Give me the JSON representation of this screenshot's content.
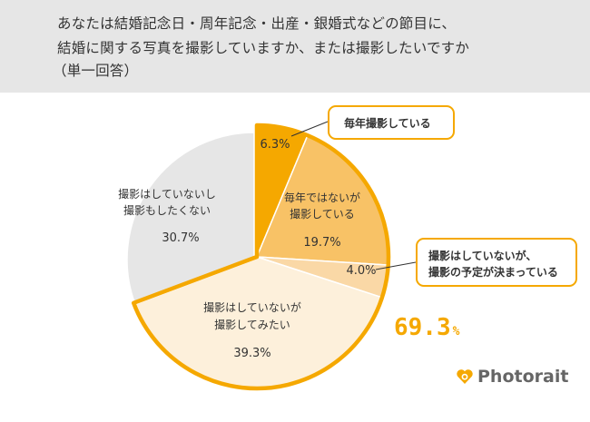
{
  "header": {
    "lines": [
      "あなたは結婚記念日・周年記念・出産・銀婚式などの節目に、",
      "結婚に関する写真を撮影していますか、または撮影したいですか",
      "（単一回答）"
    ]
  },
  "chart_data": {
    "type": "pie",
    "slices": [
      {
        "label_lines": [
          "毎年撮影している"
        ],
        "value": 6.3,
        "value_text": "6.3%",
        "color": "#f5a800",
        "exploded": true
      },
      {
        "label_lines": [
          "毎年ではないが",
          "撮影している"
        ],
        "value": 19.7,
        "value_text": "19.7%",
        "color": "#f8c266",
        "exploded": true
      },
      {
        "label_lines": [
          "撮影はしていないが、",
          "撮影の予定が決まっている"
        ],
        "value": 4.0,
        "value_text": "4.0%",
        "color": "#fad8a6",
        "exploded": true
      },
      {
        "label_lines": [
          "撮影はしていないが",
          "撮影してみたい"
        ],
        "value": 39.3,
        "value_text": "39.3%",
        "color": "#fdf0db",
        "exploded": true
      },
      {
        "label_lines": [
          "撮影はしていないし",
          "撮影もしたくない"
        ],
        "value": 30.7,
        "value_text": "30.7%",
        "color": "#e6e6e6",
        "exploded": false
      }
    ],
    "highlight_total": {
      "value": "69.3",
      "unit": "%"
    },
    "highlight_color": "#f5a800"
  },
  "brand": {
    "name": "Photorait",
    "icon": "heart-camera-icon",
    "color": "#f5a800"
  }
}
